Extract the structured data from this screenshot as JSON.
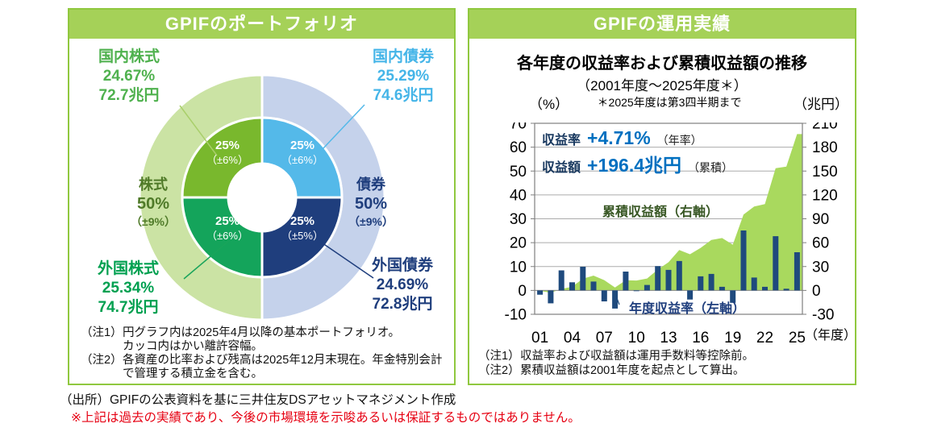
{
  "page": {
    "source": "（出所）GPIFの公表資料を基に三井住友DSアセットマネジメント作成",
    "disclaimer": "※上記は過去の実績であり、今後の市場環境を示唆あるいは保証するものではありません。"
  },
  "portfolio": {
    "header": "GPIFのポートフォリオ",
    "segments": [
      {
        "name": "国内株式",
        "pct": "24.67%",
        "amount": "72.7兆円",
        "share": "25%",
        "band": "（±6%）",
        "color": "#79B82D",
        "text_color": "#4FB14E",
        "line_color": "#A9CF6B"
      },
      {
        "name": "国内債券",
        "pct": "25.29%",
        "amount": "74.6兆円",
        "share": "25%",
        "band": "（±6%）",
        "color": "#54B9E9",
        "text_color": "#45B5E8",
        "line_color": "#54B9E9"
      },
      {
        "name": "外国株式",
        "pct": "25.34%",
        "amount": "74.7兆円",
        "share": "25%",
        "band": "（±6%）",
        "color": "#14A45B",
        "text_color": "#00A050",
        "line_color": "#19A45B"
      },
      {
        "name": "外国債券",
        "pct": "24.69%",
        "amount": "72.8兆円",
        "share": "25%",
        "band": "（±5%）",
        "color": "#1F3E7D",
        "text_color": "#1F3E7D",
        "line_color": "#1F3E7D"
      }
    ],
    "groups": [
      {
        "name": "株式",
        "share": "50%",
        "band": "（±9%）",
        "color": "#CBE3A4",
        "text_color": "#4F7A28"
      },
      {
        "name": "債券",
        "share": "50%",
        "band": "（±9%）",
        "color": "#C5D2EB",
        "text_color": "#1F3E7D"
      }
    ],
    "notes": [
      {
        "tag": "（注1）",
        "line1": "円グラフ内は2025年4月以降の基本ポートフォリオ。",
        "line2": "カッコ内はかい離許容幅。"
      },
      {
        "tag": "（注2）",
        "line1": "各資産の比率および残高は2025年12月末現在。年金特別会計",
        "line2": "で管理する積立金を含む。"
      }
    ]
  },
  "performance": {
    "header": "GPIFの運用実績",
    "title": "各年度の収益率および累積収益額の推移",
    "subtitle": "（2001年度～2025年度＊）",
    "subnote": "＊2025年度は第3四半期まで",
    "left_unit": "（%）",
    "right_unit": "（兆円）",
    "x_unit": "（年度）",
    "stats": [
      {
        "label": "収益率",
        "value": "+4.71%",
        "suffix": "（年率）"
      },
      {
        "label": "収益額",
        "value": "+196.4兆円",
        "suffix": "（累積）"
      }
    ],
    "area_label": "累積収益額（右軸）",
    "bar_label": "年度収益率（左軸）",
    "notes": [
      {
        "tag": "（注1）",
        "line1": "収益率および収益額は運用手数料等控除前。"
      },
      {
        "tag": "（注2）",
        "line1": "累積収益額は2001年度を起点として算出。"
      }
    ]
  },
  "chart_data": {
    "type": "combo bar+area",
    "title": "各年度の収益率および累積収益額の推移",
    "years": [
      2001,
      2002,
      2003,
      2004,
      2005,
      2006,
      2007,
      2008,
      2009,
      2010,
      2011,
      2012,
      2013,
      2014,
      2015,
      2016,
      2017,
      2018,
      2019,
      2020,
      2021,
      2022,
      2023,
      2024,
      2025
    ],
    "x_tick_labels": [
      "01",
      "04",
      "07",
      "10",
      "13",
      "16",
      "19",
      "22",
      "25"
    ],
    "series": [
      {
        "name": "年度収益率（左軸）",
        "type": "bar",
        "axis": "left",
        "unit": "%",
        "color": "#1F4A7D",
        "values": [
          -1.8,
          -5.4,
          8.4,
          3.4,
          9.9,
          3.7,
          -4.6,
          -7.6,
          7.9,
          -0.3,
          2.3,
          10.2,
          8.6,
          12.3,
          -3.8,
          5.9,
          6.9,
          1.5,
          -5.2,
          25.1,
          5.4,
          1.5,
          22.7,
          0.7,
          16.0
        ]
      },
      {
        "name": "累積収益額（右軸）",
        "type": "area",
        "axis": "right",
        "unit": "兆円",
        "color": "#A9D95E",
        "values": [
          -0.6,
          -3.0,
          1.8,
          4.7,
          14.7,
          18.6,
          12.9,
          3.6,
          12.7,
          12.4,
          15.0,
          26.2,
          35.4,
          50.7,
          45.4,
          53.4,
          63.4,
          65.8,
          57.5,
          95.3,
          105.4,
          108.4,
          153.6,
          155.5,
          196.4
        ]
      }
    ],
    "left_axis": {
      "min": -10,
      "max": 70,
      "step": 10,
      "ticks": [
        70,
        60,
        50,
        40,
        30,
        20,
        10,
        0,
        -10
      ]
    },
    "right_axis": {
      "min": -30,
      "max": 210,
      "step": 30,
      "ticks": [
        210,
        180,
        150,
        120,
        90,
        60,
        30,
        0,
        -30
      ]
    },
    "grid": true,
    "legend_position": "inside-plot"
  }
}
